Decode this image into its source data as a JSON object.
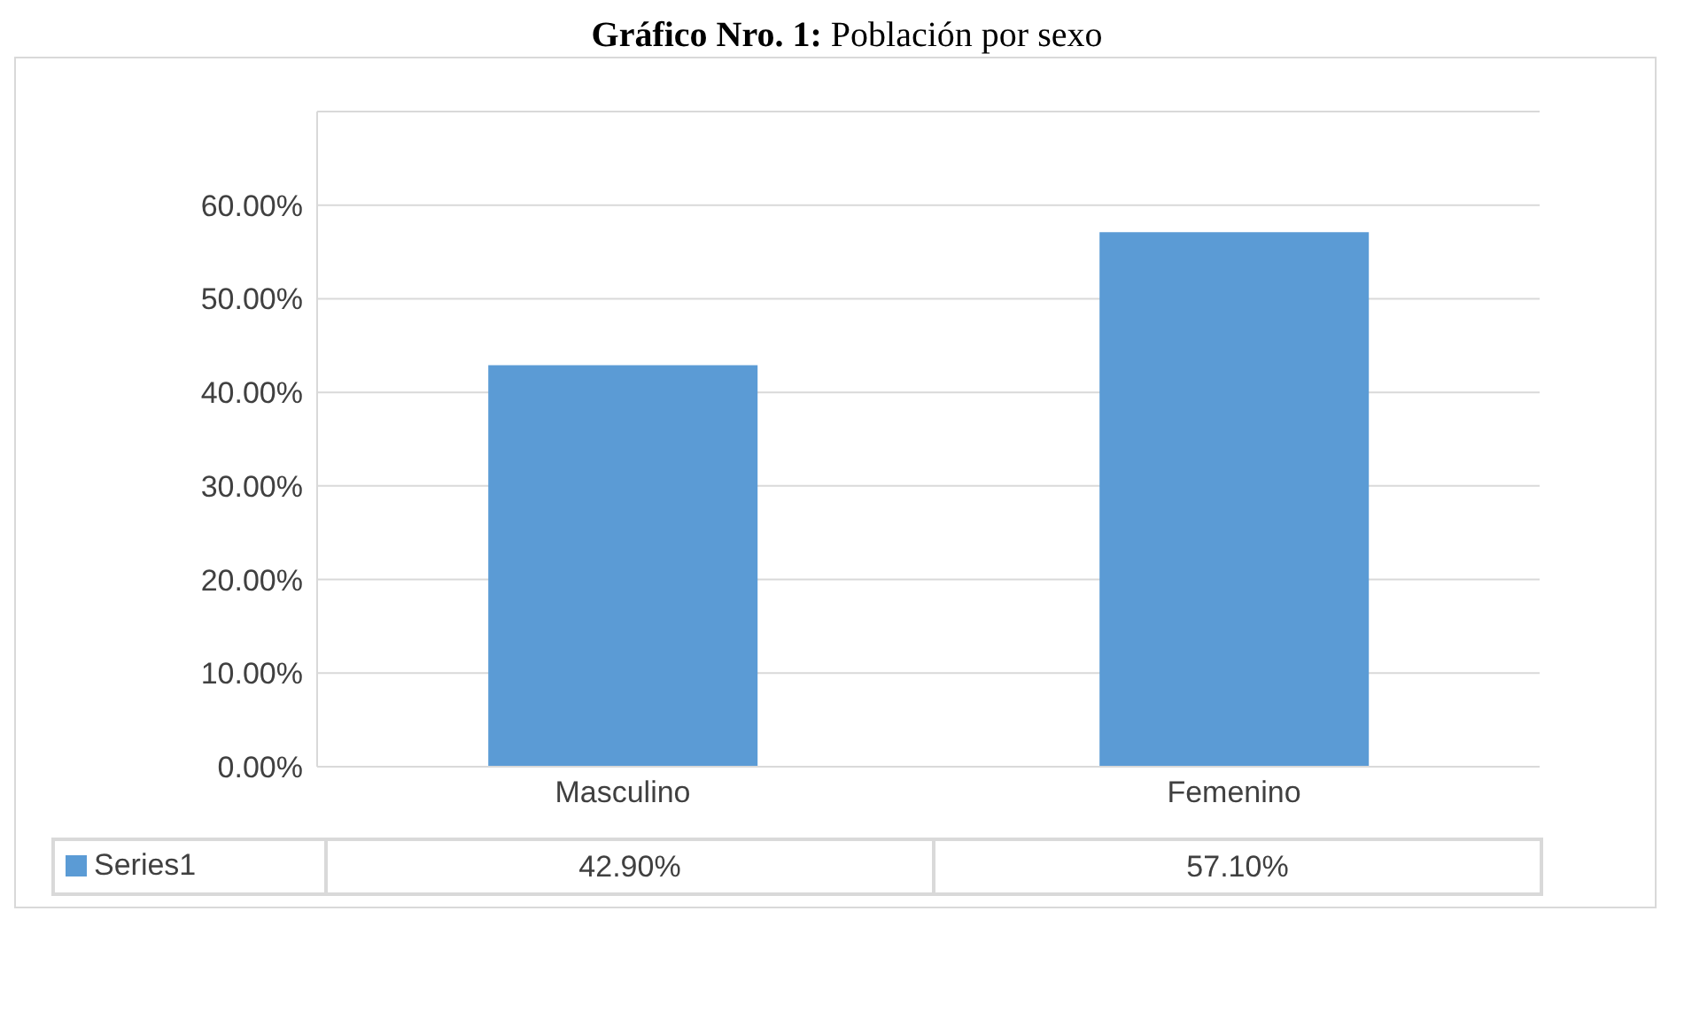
{
  "chart_data": {
    "type": "bar",
    "title": "Gráfico Nro. 1: Población por sexo",
    "categories": [
      "Masculino",
      "Femenino"
    ],
    "series": [
      {
        "name": "Series1",
        "color": "#5b9bd5",
        "values": [
          42.9,
          57.1
        ],
        "value_labels": [
          "42.90%",
          "57.10%"
        ]
      }
    ],
    "ylim": [
      0,
      70
    ],
    "yticks": [
      {
        "value": 0,
        "label": "0.00%"
      },
      {
        "value": 10,
        "label": "10.00%"
      },
      {
        "value": 20,
        "label": "20.00%"
      },
      {
        "value": 30,
        "label": "30.00%"
      },
      {
        "value": 40,
        "label": "40.00%"
      },
      {
        "value": 50,
        "label": "50.00%"
      },
      {
        "value": 60,
        "label": "60.00%"
      },
      {
        "value": 70,
        "label": null
      }
    ],
    "grid": "y",
    "legend": "bottom"
  }
}
